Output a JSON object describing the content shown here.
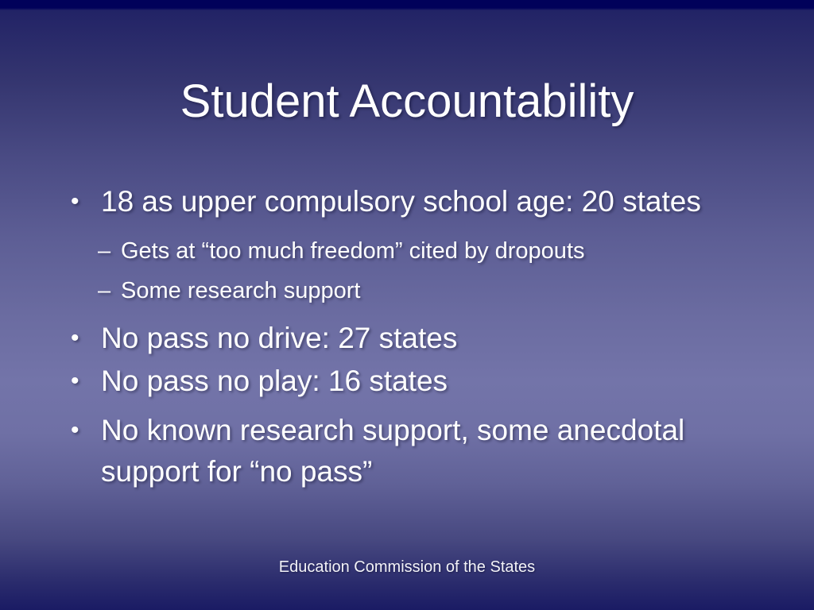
{
  "slide": {
    "title": "Student Accountability",
    "markers": {
      "level1": "•",
      "level2": "–"
    },
    "bullets": [
      {
        "level": 1,
        "text": "18 as upper compulsory school age: 20 states"
      },
      {
        "level": 2,
        "text": "Gets at “too much freedom” cited by dropouts"
      },
      {
        "level": 2,
        "text": "Some research support"
      },
      {
        "level": 1,
        "text": "No pass no drive: 27 states"
      },
      {
        "level": 1,
        "text": "No pass no play: 16 states"
      },
      {
        "level": 1,
        "text": "No known research support, some anecdotal support for “no pass”"
      }
    ],
    "footer": "Education Commission of the States",
    "colors": {
      "text": "#ffffff",
      "background_top_band": "#01015a",
      "background_mid": "#7374a9",
      "background_bottom": "#1a1b64"
    }
  }
}
